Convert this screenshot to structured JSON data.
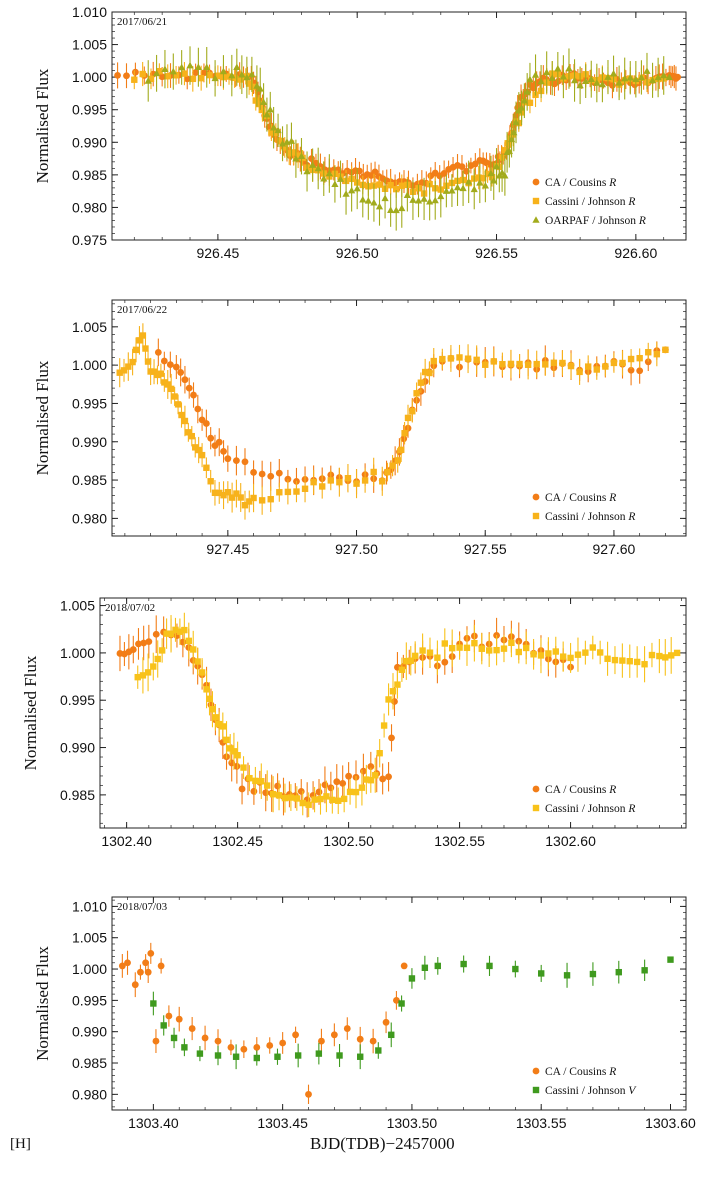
{
  "figure": {
    "tag": "[H]",
    "xlabel": "BJD(TDB)−2457000",
    "ylabel": "Normalised Flux"
  },
  "colors": {
    "ca": "#f27d17",
    "cassini": "#f7b21b",
    "cassini_r": "#f8c21a",
    "oarpaf": "#a2ab1c",
    "cassini_v": "#3f9a1e"
  },
  "chart_data": [
    {
      "type": "scatter",
      "date": "2017/06/21",
      "xlim": [
        926.412,
        926.618
      ],
      "ylim": [
        0.975,
        1.01
      ],
      "xticks": [
        "926.45",
        "926.50",
        "926.55",
        "926.60"
      ],
      "yticks": [
        "0.975",
        "0.980",
        "0.985",
        "0.990",
        "0.995",
        "1.000",
        "1.005",
        "1.010"
      ],
      "legend_position": "bottom-right",
      "series": [
        {
          "name": "CA / Cousins R",
          "filter": "R",
          "marker": "circle",
          "color": "#f27d17",
          "x": [
            926.414,
            926.43,
            926.445,
            926.455,
            926.462,
            926.466,
            926.47,
            926.476,
            926.482,
            926.49,
            926.498,
            926.505,
            926.512,
            926.52,
            926.528,
            926.536,
            926.544,
            926.55,
            926.553,
            926.556,
            926.558,
            926.562,
            926.568,
            926.575,
            926.582,
            926.59,
            926.598,
            926.606,
            926.612,
            926.615
          ],
          "y": [
            1.0002,
            1.0002,
            1.0002,
            1.0003,
            1.0,
            0.9955,
            0.991,
            0.9883,
            0.9873,
            0.9858,
            0.9855,
            0.985,
            0.9837,
            0.9836,
            0.985,
            0.986,
            0.9865,
            0.9868,
            0.9885,
            0.9925,
            0.996,
            0.9985,
            0.9995,
            1.0,
            0.9998,
            0.9995,
            0.9992,
            0.9995,
            1.0003,
            1.0
          ]
        },
        {
          "name": "Cassini / Johnson R",
          "filter": "R",
          "marker": "square",
          "color": "#f7b21b",
          "x": [
            926.42,
            926.435,
            926.45,
            926.46,
            926.466,
            926.474,
            926.482,
            926.492,
            926.502,
            926.512,
            926.522,
            926.532,
            926.542,
            926.55,
            926.555,
            926.56,
            926.57,
            926.58,
            926.59,
            926.6,
            926.61
          ],
          "y": [
            0.9998,
            1.0,
            0.9998,
            1.0,
            0.9945,
            0.989,
            0.9865,
            0.985,
            0.9838,
            0.983,
            0.983,
            0.9835,
            0.9842,
            0.9855,
            0.9905,
            0.996,
            0.9998,
            1.0,
            0.9998,
            0.9995,
            0.9998
          ]
        },
        {
          "name": "OARPAF / Johnson R",
          "filter": "R",
          "marker": "triangle",
          "color": "#a2ab1c",
          "x": [
            926.425,
            926.44,
            926.455,
            926.464,
            926.47,
            926.478,
            926.488,
            926.498,
            926.508,
            926.518,
            926.528,
            926.538,
            926.548,
            926.553,
            926.557,
            926.562,
            926.572,
            926.582,
            926.592,
            926.602,
            926.612
          ],
          "y": [
            1.0,
            1.0015,
            1.0005,
            1.0,
            0.9925,
            0.9875,
            0.985,
            0.9825,
            0.9805,
            0.9808,
            0.9818,
            0.9828,
            0.984,
            0.9865,
            0.9935,
            0.9995,
            1.0,
            0.9995,
            0.9997,
            0.9998,
            1.0
          ]
        }
      ]
    },
    {
      "type": "scatter",
      "date": "2017/06/22",
      "xlim": [
        927.405,
        927.628
      ],
      "ylim": [
        0.9777,
        1.0085
      ],
      "xticks": [
        "927.45",
        "927.50",
        "927.55",
        "927.60"
      ],
      "yticks": [
        "0.980",
        "0.985",
        "0.990",
        "0.995",
        "1.000",
        "1.005"
      ],
      "legend_position": "bottom-right",
      "series": [
        {
          "name": "CA / Cousins R",
          "filter": "R",
          "marker": "circle",
          "color": "#f27d17",
          "x": [
            927.423,
            927.43,
            927.435,
            927.44,
            927.445,
            927.45,
            927.46,
            927.47,
            927.48,
            927.49,
            927.5,
            927.51,
            927.515,
            927.52,
            927.525,
            927.53,
            927.54,
            927.55,
            927.56,
            927.57,
            927.58,
            927.59,
            927.6,
            927.61,
            927.62
          ],
          "y": [
            1.001,
            0.9995,
            0.997,
            0.993,
            0.99,
            0.988,
            0.986,
            0.9855,
            0.9853,
            0.9852,
            0.985,
            0.9855,
            0.987,
            0.9925,
            0.997,
            1.0,
            1.0005,
            1.0003,
            1.0,
            0.9998,
            1.0,
            0.9995,
            1.0,
            1.0,
            1.002
          ]
        },
        {
          "name": "Cassini / Johnson R",
          "filter": "R",
          "marker": "square",
          "color": "#f7b21b",
          "x": [
            927.408,
            927.413,
            927.417,
            927.42,
            927.424,
            927.428,
            927.432,
            927.436,
            927.44,
            927.445,
            927.45,
            927.455,
            927.46,
            927.47,
            927.48,
            927.49,
            927.5,
            927.51,
            927.516,
            927.52,
            927.525,
            927.53,
            927.54,
            927.55,
            927.56,
            927.57,
            927.58,
            927.59,
            927.6,
            927.61,
            927.62
          ],
          "y": [
            0.9995,
            1.0002,
            1.004,
            0.999,
            0.9985,
            0.997,
            0.9935,
            0.9905,
            0.988,
            0.984,
            0.983,
            0.9825,
            0.982,
            0.983,
            0.984,
            0.9845,
            0.985,
            0.9855,
            0.9875,
            0.993,
            0.9975,
            1.0005,
            1.0012,
            1.0008,
            1.0,
            0.9998,
            1.0,
            0.9995,
            1.0005,
            1.001,
            1.002
          ]
        }
      ]
    },
    {
      "type": "scatter",
      "date": "2018/07/02",
      "xlim": [
        1302.388,
        1302.652
      ],
      "ylim": [
        0.9815,
        1.0058
      ],
      "xticks": [
        "1302.40",
        "1302.45",
        "1302.50",
        "1302.55",
        "1302.60"
      ],
      "yticks": [
        "0.985",
        "0.990",
        "0.995",
        "1.000",
        "1.005"
      ],
      "legend_position": "bottom-right",
      "series": [
        {
          "name": "CA / Cousins R",
          "filter": "R",
          "marker": "circle",
          "color": "#f27d17",
          "x": [
            1302.397,
            1302.403,
            1302.41,
            1302.42,
            1302.428,
            1302.434,
            1302.44,
            1302.445,
            1302.452,
            1302.46,
            1302.468,
            1302.476,
            1302.484,
            1302.492,
            1302.5,
            1302.51,
            1302.518,
            1302.522,
            1302.53,
            1302.54,
            1302.55,
            1302.56,
            1302.57,
            1302.58,
            1302.59,
            1302.6
          ],
          "y": [
            0.9995,
            1.0005,
            1.001,
            1.0025,
            1.0008,
            0.998,
            0.993,
            0.989,
            0.9865,
            0.9858,
            0.9855,
            0.985,
            0.9848,
            0.9858,
            0.987,
            0.9875,
            0.9868,
            0.9985,
            0.9995,
            0.9988,
            1.001,
            1.001,
            1.0015,
            1.0005,
            0.9995,
            0.9985
          ]
        },
        {
          "name": "Cassini / Johnson R",
          "filter": "R",
          "marker": "square",
          "color": "#f8c21a",
          "x": [
            1302.405,
            1302.412,
            1302.418,
            1302.424,
            1302.43,
            1302.436,
            1302.44,
            1302.445,
            1302.45,
            1302.458,
            1302.466,
            1302.474,
            1302.482,
            1302.49,
            1302.498,
            1302.506,
            1302.512,
            1302.518,
            1302.524,
            1302.53,
            1302.54,
            1302.55,
            1302.56,
            1302.57,
            1302.58,
            1302.59,
            1302.6,
            1302.61,
            1302.62,
            1302.63,
            1302.64,
            1302.648
          ],
          "y": [
            0.9975,
            0.9985,
            1.0015,
            1.0025,
            1.0005,
            0.9965,
            0.993,
            0.991,
            0.9885,
            0.986,
            0.985,
            0.9842,
            0.984,
            0.9845,
            0.985,
            0.9855,
            0.987,
            0.9945,
            0.9985,
            0.9995,
            1.0,
            1.0005,
            1.0008,
            1.0005,
            1.0,
            0.9998,
            0.9995,
            0.9998,
            0.9995,
            0.9993,
            0.9998,
            1.0
          ]
        }
      ]
    },
    {
      "type": "scatter",
      "date": "2018/07/03",
      "xlim": [
        1303.384,
        1303.606
      ],
      "ylim": [
        0.9775,
        1.0115
      ],
      "xticks": [
        "1303.40",
        "1303.45",
        "1303.50",
        "1303.55",
        "1303.60"
      ],
      "yticks": [
        "0.980",
        "0.985",
        "0.990",
        "0.995",
        "1.000",
        "1.005",
        "1.010"
      ],
      "legend_position": "bottom-right",
      "series": [
        {
          "name": "CA / Cousins R",
          "filter": "R",
          "marker": "circle",
          "color": "#f27d17",
          "x": [
            1303.388,
            1303.39,
            1303.393,
            1303.395,
            1303.397,
            1303.398,
            1303.399,
            1303.401,
            1303.403,
            1303.406,
            1303.41,
            1303.415,
            1303.42,
            1303.425,
            1303.43,
            1303.435,
            1303.44,
            1303.445,
            1303.45,
            1303.455,
            1303.46,
            1303.465,
            1303.47,
            1303.475,
            1303.48,
            1303.485,
            1303.49,
            1303.494,
            1303.497
          ],
          "y": [
            1.0005,
            1.001,
            0.9975,
            0.9995,
            1.001,
            0.9995,
            1.0025,
            0.9885,
            1.0005,
            0.9925,
            0.992,
            0.9905,
            0.989,
            0.9885,
            0.9875,
            0.9872,
            0.9875,
            0.9878,
            0.9882,
            0.9895,
            0.98,
            0.9885,
            0.9895,
            0.9905,
            0.9888,
            0.9885,
            0.9915,
            0.995,
            1.0005
          ]
        },
        {
          "name": "Cassini / Johnson V",
          "filter": "V",
          "marker": "square",
          "color": "#3f9a1e",
          "x": [
            1303.4,
            1303.404,
            1303.408,
            1303.412,
            1303.418,
            1303.425,
            1303.432,
            1303.44,
            1303.448,
            1303.456,
            1303.464,
            1303.472,
            1303.48,
            1303.487,
            1303.492,
            1303.496,
            1303.5,
            1303.505,
            1303.51,
            1303.52,
            1303.53,
            1303.54,
            1303.55,
            1303.56,
            1303.57,
            1303.58,
            1303.59,
            1303.6
          ],
          "y": [
            0.9945,
            0.991,
            0.989,
            0.9875,
            0.9865,
            0.9862,
            0.986,
            0.9858,
            0.986,
            0.9862,
            0.9865,
            0.9862,
            0.986,
            0.987,
            0.9895,
            0.9945,
            0.9985,
            1.0002,
            1.0005,
            1.0008,
            1.0005,
            1.0,
            0.9993,
            0.999,
            0.9992,
            0.9995,
            0.9998,
            1.0015
          ]
        }
      ]
    }
  ]
}
